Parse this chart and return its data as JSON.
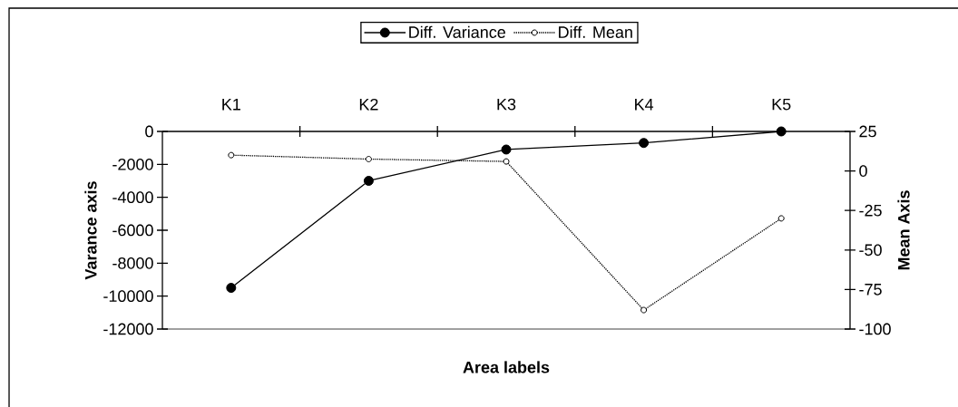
{
  "chart_data": {
    "type": "line",
    "categories": [
      "K1",
      "K2",
      "K3",
      "K4",
      "K5"
    ],
    "xlabel": "Area labels",
    "ylabel": "Varance axis",
    "y2label": "Mean Axis",
    "ylim": [
      -12000,
      0
    ],
    "yticks": [
      -12000,
      -10000,
      -8000,
      -6000,
      -4000,
      -2000,
      0
    ],
    "y2lim": [
      -100,
      25
    ],
    "y2ticks": [
      -100,
      -75,
      -50,
      -25,
      0,
      25
    ],
    "legend": "top",
    "marker": "circle",
    "series": [
      {
        "name": "Diff. Variance",
        "color": "#000000",
        "values": [
          -9500,
          -3000,
          -1100,
          -700,
          0
        ],
        "line_style": "solid"
      },
      {
        "name": "Diff. Mean",
        "color": "#000000",
        "values": [
          10,
          7.5,
          6,
          -88,
          -30
        ],
        "axis": "y2",
        "line_style": "dotted"
      }
    ]
  }
}
